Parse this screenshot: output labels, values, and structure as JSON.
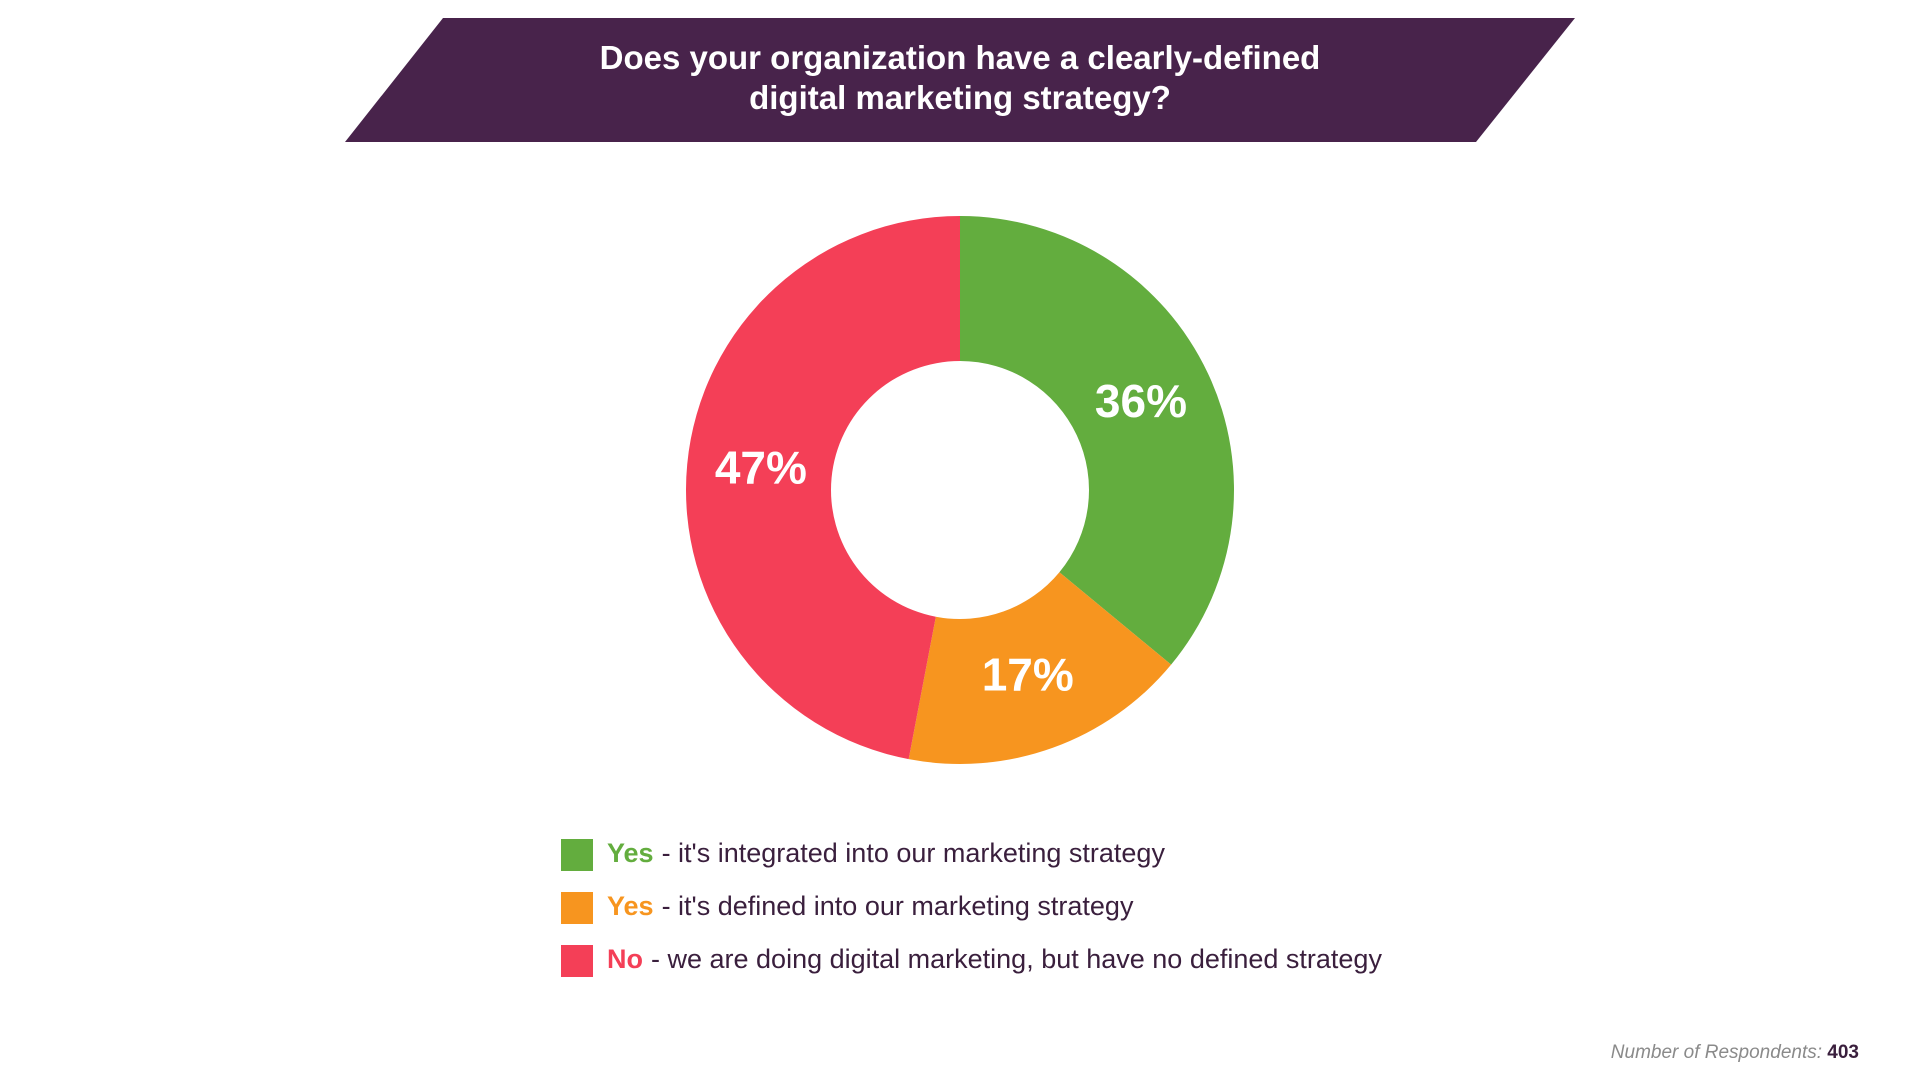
{
  "chart_data": {
    "type": "donut",
    "title": "Does your organization have a clearly-defined digital marketing strategy?",
    "categories": [
      "Yes",
      "Yes",
      "No"
    ],
    "descriptions": [
      "- it's integrated into our marketing strategy",
      "- it's defined into our marketing strategy",
      "- we are doing digital marketing, but have no defined strategy"
    ],
    "values": [
      36,
      17,
      47
    ],
    "value_labels": [
      "36%",
      "17%",
      "47%"
    ],
    "colors": [
      "#63ad3e",
      "#f7951f",
      "#f43f57"
    ],
    "respondents": {
      "label": "Number of Respondents:",
      "value": 403
    }
  }
}
